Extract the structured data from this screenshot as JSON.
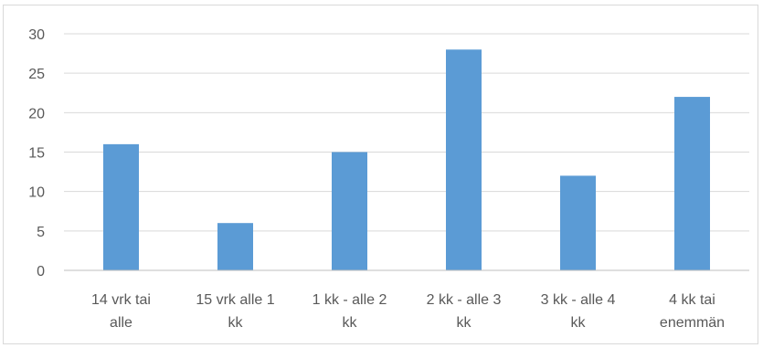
{
  "chart_data": {
    "type": "bar",
    "categories": [
      [
        "14 vrk tai",
        "alle"
      ],
      [
        "15 vrk alle 1",
        "kk"
      ],
      [
        "1 kk - alle 2",
        "kk"
      ],
      [
        "2 kk - alle 3",
        "kk"
      ],
      [
        "3 kk - alle 4",
        "kk"
      ],
      [
        "4 kk tai",
        "enemmän"
      ]
    ],
    "values": [
      16,
      6,
      15,
      28,
      12,
      22
    ],
    "ylim": [
      0,
      30
    ],
    "yticks": [
      0,
      5,
      10,
      15,
      20,
      25,
      30
    ],
    "grid": true,
    "legend": "none",
    "title": "",
    "xlabel": "",
    "ylabel": "",
    "colors": {
      "bar": "#5b9bd5",
      "grid": "#d9d9d9",
      "axis": "#bfbfbf",
      "text": "#595959"
    }
  }
}
